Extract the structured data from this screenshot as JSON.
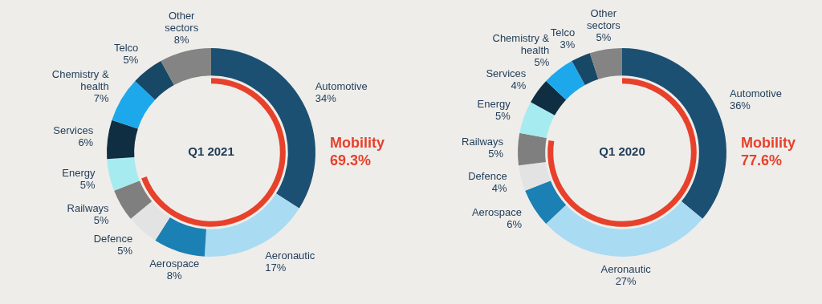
{
  "chart_data": [
    {
      "type": "doughnut",
      "title": "Q1 2021",
      "categories": [
        "Automotive",
        "Aeronautic",
        "Aerospace",
        "Defence",
        "Railways",
        "Energy",
        "Services",
        "Chemistry & health",
        "Telco",
        "Other sectors"
      ],
      "values": [
        34,
        17,
        8,
        5,
        5,
        5,
        6,
        7,
        5,
        8
      ],
      "value_labels": [
        "34%",
        "17%",
        "8%",
        "5%",
        "5%",
        "5%",
        "6%",
        "7%",
        "5%",
        "8%"
      ],
      "colors": [
        "#1b5073",
        "#a9dbf3",
        "#1b80b3",
        "#e3e3e3",
        "#7f7f7f",
        "#a6ebef",
        "#0f2e42",
        "#1ea8ec",
        "#174866",
        "#848484"
      ],
      "data_labels": true,
      "annotations": [
        {
          "text": "Mobility",
          "value": 69.3,
          "value_label": "69.3%",
          "color": "#e8412b"
        }
      ]
    },
    {
      "type": "doughnut",
      "title": "Q1 2020",
      "categories": [
        "Automotive",
        "Aeronautic",
        "Aerospace",
        "Defence",
        "Railways",
        "Energy",
        "Services",
        "Chemistry & health",
        "Telco",
        "Other sectors"
      ],
      "values": [
        36,
        27,
        6,
        4,
        5,
        5,
        4,
        5,
        3,
        5
      ],
      "value_labels": [
        "36%",
        "27%",
        "6%",
        "4%",
        "5%",
        "5%",
        "4%",
        "5%",
        "3%",
        "5%"
      ],
      "colors": [
        "#1b5073",
        "#a9dbf3",
        "#1b80b3",
        "#e3e3e3",
        "#7f7f7f",
        "#a6ebef",
        "#0f2e42",
        "#1ea8ec",
        "#174866",
        "#848484"
      ],
      "data_labels": true,
      "annotations": [
        {
          "text": "Mobility",
          "value": 77.6,
          "value_label": "77.6%",
          "color": "#e8412b"
        }
      ]
    }
  ]
}
